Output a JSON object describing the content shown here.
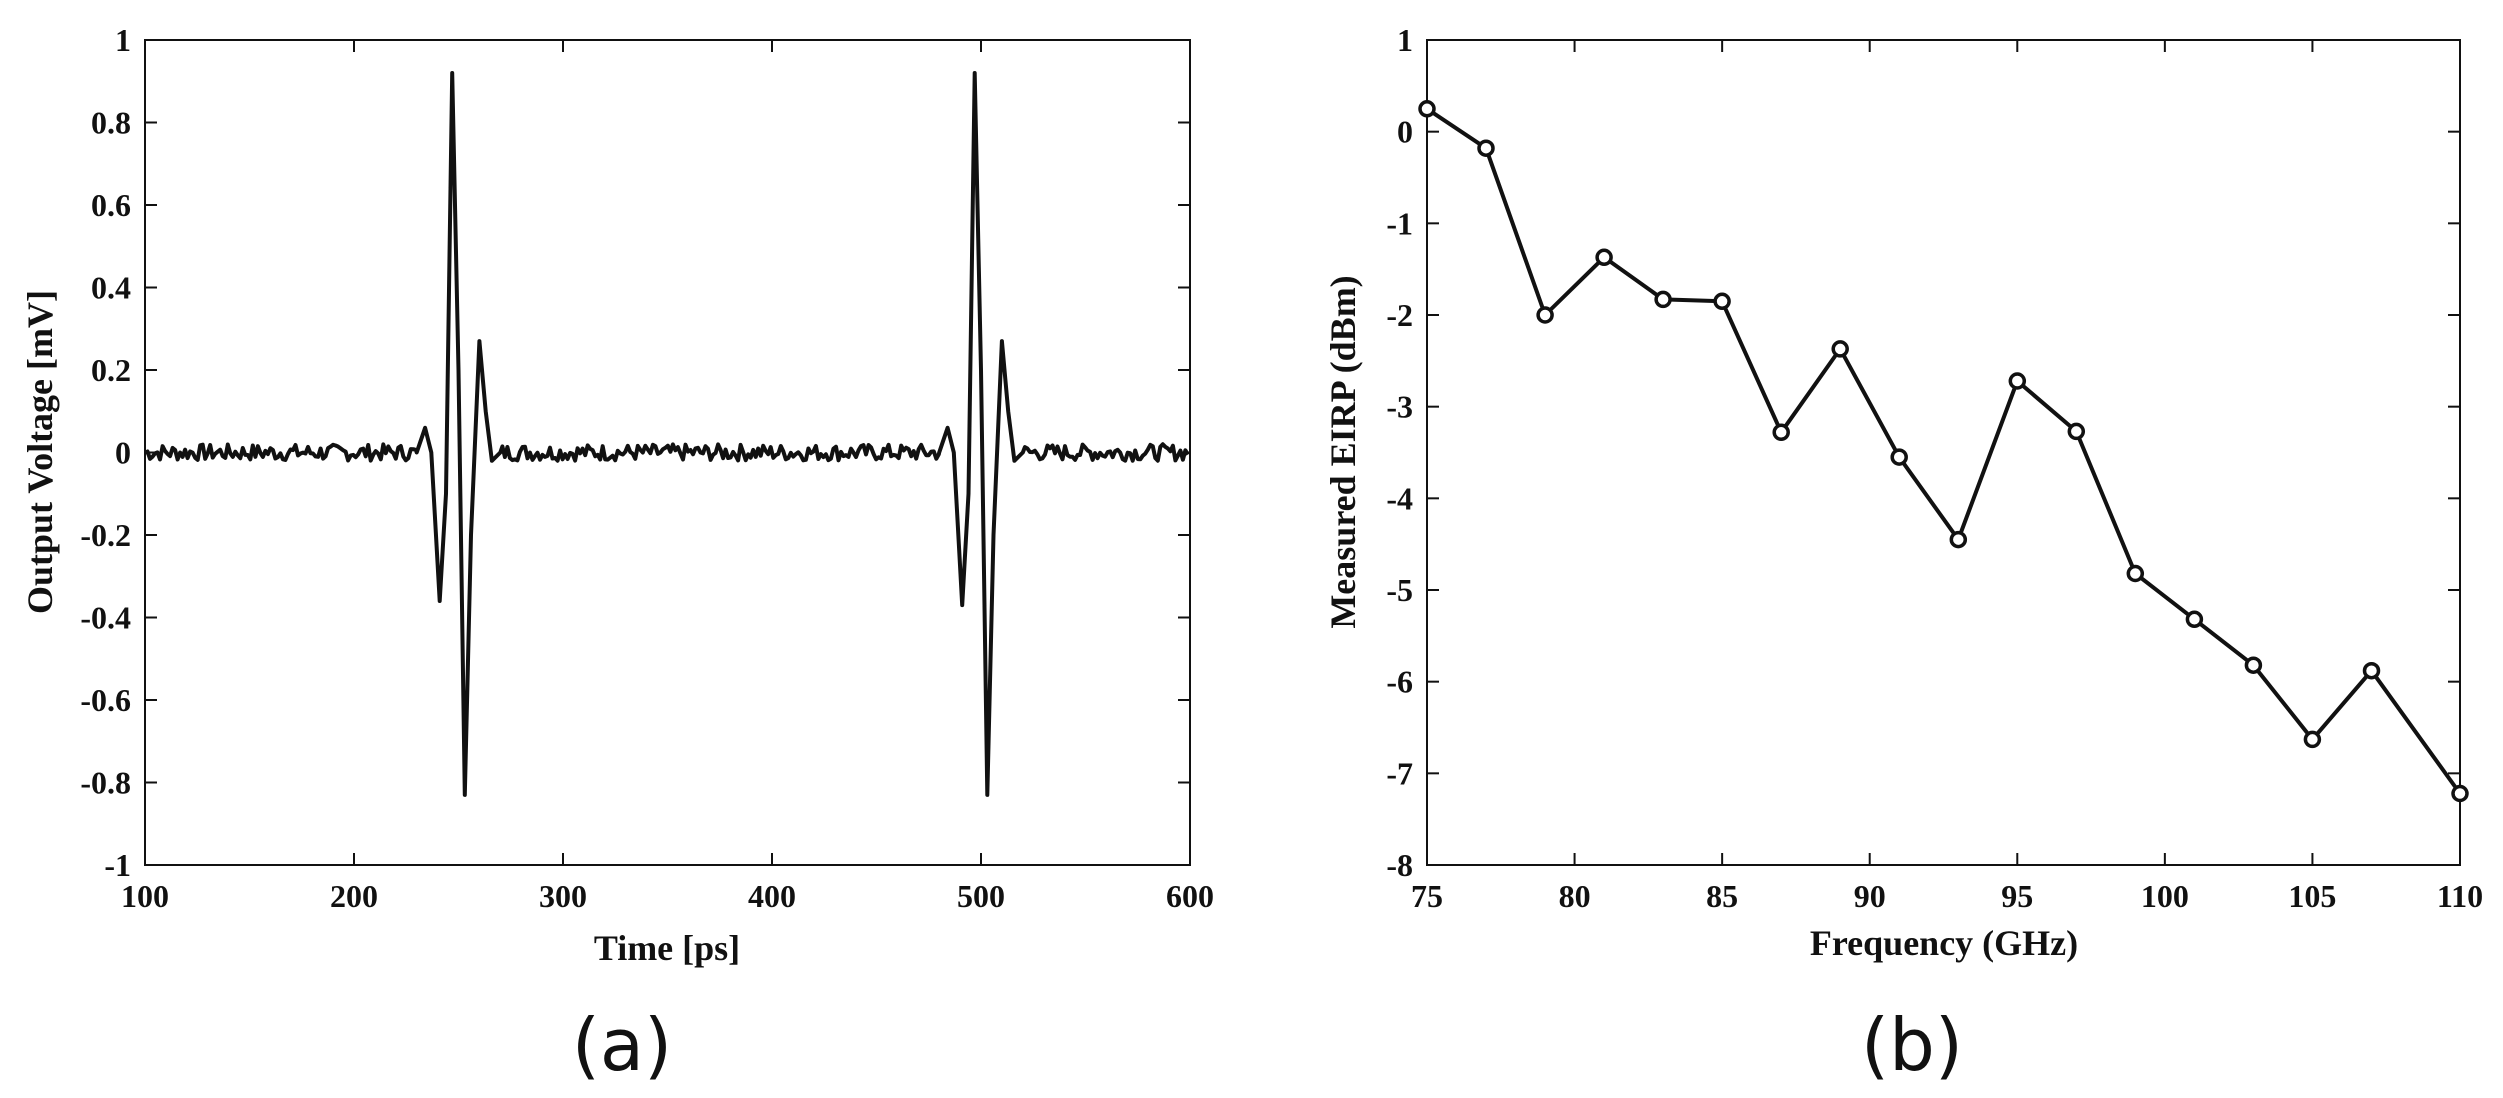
{
  "chart_data": [
    {
      "type": "line",
      "panel_label": "(a)",
      "title": "",
      "xlabel": "Time [ps]",
      "ylabel": "Output Voltage [mV]",
      "xlim": [
        100,
        600
      ],
      "ylim": [
        -1,
        1
      ],
      "xticks": [
        100,
        200,
        300,
        400,
        500,
        600
      ],
      "yticks": [
        -1,
        -0.8,
        -0.6,
        -0.4,
        -0.2,
        0,
        0.2,
        0.4,
        0.6,
        0.8,
        1
      ],
      "grid": false,
      "legend": "none",
      "line_color": "#111111",
      "baseline_noise_amplitude": 0.02,
      "pulses": [
        {
          "center_ps": 247,
          "points": [
            [
              230,
              0.0
            ],
            [
              234,
              0.06
            ],
            [
              237,
              0.0
            ],
            [
              241,
              -0.36
            ],
            [
              244,
              -0.1
            ],
            [
              247,
              0.92
            ],
            [
              250,
              0.2
            ],
            [
              253,
              -0.83
            ],
            [
              256,
              -0.2
            ],
            [
              260,
              0.27
            ],
            [
              263,
              0.1
            ],
            [
              266,
              -0.02
            ],
            [
              270,
              0.0
            ]
          ]
        },
        {
          "center_ps": 497,
          "points": [
            [
              480,
              0.0
            ],
            [
              484,
              0.06
            ],
            [
              487,
              0.0
            ],
            [
              491,
              -0.37
            ],
            [
              494,
              -0.1
            ],
            [
              497,
              0.92
            ],
            [
              500,
              0.2
            ],
            [
              503,
              -0.83
            ],
            [
              506,
              -0.2
            ],
            [
              510,
              0.27
            ],
            [
              513,
              0.1
            ],
            [
              516,
              -0.02
            ],
            [
              520,
              0.0
            ]
          ]
        }
      ]
    },
    {
      "type": "line",
      "panel_label": "(b)",
      "title": "",
      "xlabel": "Frequency (GHz)",
      "ylabel": "Measured EIRP (dBm)",
      "xlim": [
        75,
        110
      ],
      "ylim": [
        -8,
        1
      ],
      "xticks": [
        75,
        80,
        85,
        90,
        95,
        100,
        105,
        110
      ],
      "yticks": [
        -8,
        -7,
        -6,
        -5,
        -4,
        -3,
        -2,
        -1,
        0,
        1
      ],
      "grid": false,
      "legend": "none",
      "marker": "circle",
      "line_color": "#111111",
      "x": [
        75,
        77,
        79,
        81,
        83,
        85,
        87,
        89,
        91,
        93,
        95,
        97,
        99,
        101,
        103,
        105,
        107,
        110
      ],
      "values": [
        0.25,
        -0.18,
        -2.0,
        -1.37,
        -1.83,
        -1.85,
        -3.28,
        -2.37,
        -3.55,
        -4.45,
        -2.72,
        -3.27,
        -4.82,
        -5.32,
        -5.82,
        -6.63,
        -5.88,
        -7.22
      ]
    }
  ]
}
